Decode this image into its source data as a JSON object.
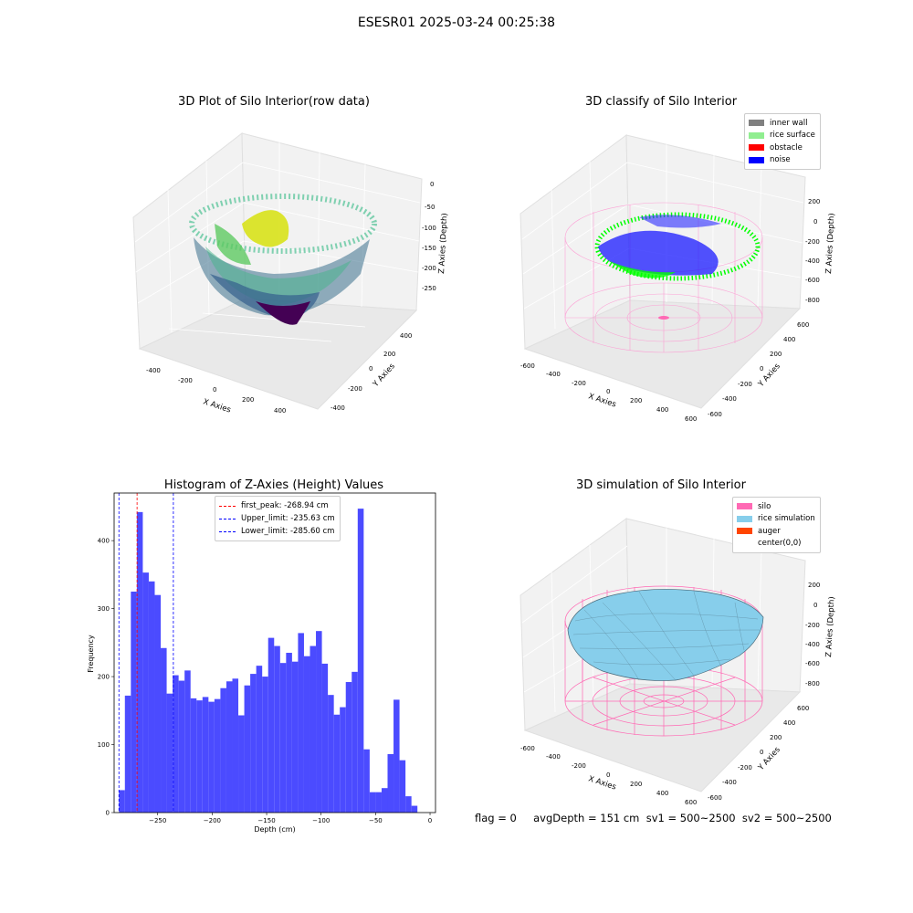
{
  "suptitle": "ESESR01 2025-03-24 00:25:38",
  "footer": "flag = 0     avgDepth = 151 cm  sv1 = 500~2500  sv2 = 500~2500",
  "chart_data": [
    {
      "type": "scatter",
      "panel": "3d-raw",
      "title": "3D Plot of Silo Interior(row data)",
      "xlabel": "X Axies",
      "ylabel": "Y Axies",
      "zlabel": "Z Axies (Depth)",
      "x_ticks": [
        "-400",
        "-200",
        "0",
        "200",
        "400"
      ],
      "y_ticks": [
        "400",
        "200",
        "0",
        "-200",
        "-400"
      ],
      "z_ticks": [
        "0",
        "-50",
        "-100",
        "-150",
        "-200",
        "-250"
      ],
      "colormap": "viridis"
    },
    {
      "type": "scatter",
      "panel": "3d-classify",
      "title": "3D classify of Silo Interior",
      "xlabel": "X Axies",
      "ylabel": "Y Axies",
      "zlabel": "Z Axies (Depth)",
      "x_ticks": [
        "-600",
        "-400",
        "-200",
        "0",
        "200",
        "400",
        "600"
      ],
      "y_ticks": [
        "600",
        "400",
        "200",
        "0",
        "-200",
        "-400",
        "-600"
      ],
      "z_ticks": [
        "200",
        "0",
        "-200",
        "-400",
        "-600",
        "-800"
      ],
      "legend": [
        {
          "label": "inner wall",
          "color": "#808080"
        },
        {
          "label": "rice surface",
          "color": "#90ee90"
        },
        {
          "label": "obstacle",
          "color": "#ff0000"
        },
        {
          "label": "noise",
          "color": "#0000ff"
        }
      ]
    },
    {
      "type": "bar",
      "panel": "histogram",
      "title": "Histogram of Z-Axies (Height) Values",
      "xlabel": "Depth (cm)",
      "ylabel": "Frequency",
      "xlim": [
        -290,
        5
      ],
      "ylim": [
        0,
        470
      ],
      "x_ticks": [
        -250,
        -200,
        -150,
        -100,
        -50,
        0
      ],
      "y_ticks": [
        0,
        100,
        200,
        300,
        400
      ],
      "bin_start": -285.6,
      "bin_width": 5.48,
      "values": [
        33,
        172,
        325,
        442,
        353,
        340,
        320,
        242,
        175,
        202,
        194,
        209,
        168,
        165,
        170,
        163,
        167,
        183,
        193,
        197,
        143,
        187,
        204,
        216,
        200,
        257,
        245,
        220,
        235,
        222,
        264,
        230,
        245,
        267,
        219,
        173,
        144,
        155,
        192,
        207,
        447,
        93,
        30,
        30,
        36,
        86,
        166,
        77,
        24,
        10
      ],
      "bar_color": "#4b4bff",
      "lines": [
        {
          "label": "first_peak: -268.94 cm",
          "x": -268.94,
          "color": "#ff0000"
        },
        {
          "label": "Upper_limit: -235.63 cm",
          "x": -235.63,
          "color": "#0000ff"
        },
        {
          "label": "Lower_limit: -285.60 cm",
          "x": -285.6,
          "color": "#0000ff"
        }
      ]
    },
    {
      "type": "area",
      "panel": "3d-simulation",
      "title": "3D simulation of Silo Interior",
      "xlabel": "X Axies",
      "ylabel": "Y Axies",
      "zlabel": "Z Axies (Depth)",
      "x_ticks": [
        "-600",
        "-400",
        "-200",
        "0",
        "200",
        "400",
        "600"
      ],
      "y_ticks": [
        "600",
        "400",
        "200",
        "0",
        "-200",
        "-400",
        "-600"
      ],
      "z_ticks": [
        "200",
        "0",
        "-200",
        "-400",
        "-600",
        "-800"
      ],
      "legend": [
        {
          "label": "silo",
          "color": "#ff69b4"
        },
        {
          "label": "rice simulation",
          "color": "#87ceeb"
        },
        {
          "label": "auger",
          "color": "#ff4500"
        },
        {
          "label": "center(0,0)",
          "color": "#ffffff"
        }
      ]
    }
  ]
}
